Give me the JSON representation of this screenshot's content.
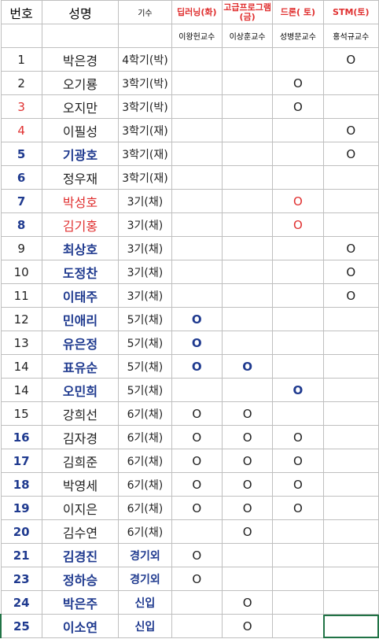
{
  "colors": {
    "blue": "#1f3a8f",
    "red": "#e03030",
    "black": "#222222",
    "selection": "#217346"
  },
  "headers": {
    "number": "번호",
    "name": "성명",
    "generation": "기수",
    "subjects": [
      "딥러닝(화)",
      "고급프로그램(금)",
      "드론( 토)",
      "STM(토)"
    ],
    "professors": [
      "이왕헌교수",
      "이상훈교수",
      "성병문교수",
      "홍석규교수"
    ]
  },
  "rows": [
    {
      "num": "1",
      "name": "박은경",
      "gen": "4학기(박)",
      "marks": [
        "",
        "",
        "",
        "O"
      ],
      "num_color": "black",
      "name_color": "black",
      "gen_color": "black",
      "mark_color": "black"
    },
    {
      "num": "2",
      "name": "오기룡",
      "gen": "3학기(박)",
      "marks": [
        "",
        "",
        "O",
        ""
      ],
      "num_color": "black",
      "name_color": "black",
      "gen_color": "black",
      "mark_color": "black"
    },
    {
      "num": "3",
      "name": "오지만",
      "gen": "3학기(박)",
      "marks": [
        "",
        "",
        "O",
        ""
      ],
      "num_color": "red",
      "name_color": "black",
      "gen_color": "black",
      "mark_color": "black"
    },
    {
      "num": "4",
      "name": "이필성",
      "gen": "3학기(재)",
      "marks": [
        "",
        "",
        "",
        "O"
      ],
      "num_color": "red",
      "name_color": "black",
      "gen_color": "black",
      "mark_color": "black"
    },
    {
      "num": "5",
      "name": "기광호",
      "gen": "3학기(재)",
      "marks": [
        "",
        "",
        "",
        "O"
      ],
      "num_color": "blue",
      "name_color": "blue",
      "gen_color": "black",
      "mark_color": "black"
    },
    {
      "num": "6",
      "name": "정우재",
      "gen": "3학기(재)",
      "marks": [
        "",
        "",
        "",
        ""
      ],
      "num_color": "blue",
      "name_color": "black",
      "gen_color": "black",
      "mark_color": "black"
    },
    {
      "num": "7",
      "name": "박성호",
      "gen": "3기(채)",
      "marks": [
        "",
        "",
        "O",
        ""
      ],
      "num_color": "blue",
      "name_color": "red",
      "gen_color": "black",
      "mark_color": "red"
    },
    {
      "num": "8",
      "name": "김기홍",
      "gen": "3기(채)",
      "marks": [
        "",
        "",
        "O",
        ""
      ],
      "num_color": "blue",
      "name_color": "red",
      "gen_color": "black",
      "mark_color": "red"
    },
    {
      "num": "9",
      "name": "최상호",
      "gen": "3기(채)",
      "marks": [
        "",
        "",
        "",
        "O"
      ],
      "num_color": "black",
      "name_color": "blue",
      "gen_color": "black",
      "mark_color": "black"
    },
    {
      "num": "10",
      "name": "도정찬",
      "gen": "3기(채)",
      "marks": [
        "",
        "",
        "",
        "O"
      ],
      "num_color": "black",
      "name_color": "blue",
      "gen_color": "black",
      "mark_color": "black"
    },
    {
      "num": "11",
      "name": "이태주",
      "gen": "3기(채)",
      "marks": [
        "",
        "",
        "",
        "O"
      ],
      "num_color": "black",
      "name_color": "blue",
      "gen_color": "black",
      "mark_color": "black"
    },
    {
      "num": "12",
      "name": "민애리",
      "gen": "5기(채)",
      "marks": [
        "O",
        "",
        "",
        ""
      ],
      "num_color": "black",
      "name_color": "blue",
      "gen_color": "black",
      "mark_color": "blue"
    },
    {
      "num": "13",
      "name": "유은정",
      "gen": "5기(채)",
      "marks": [
        "O",
        "",
        "",
        ""
      ],
      "num_color": "black",
      "name_color": "blue",
      "gen_color": "black",
      "mark_color": "blue"
    },
    {
      "num": "14",
      "name": "표유순",
      "gen": "5기(채)",
      "marks": [
        "O",
        "O",
        "",
        ""
      ],
      "num_color": "black",
      "name_color": "blue",
      "gen_color": "black",
      "mark_color": "blue"
    },
    {
      "num": "14",
      "name": "오민희",
      "gen": "5기(채)",
      "marks": [
        "",
        "",
        "O",
        ""
      ],
      "num_color": "black",
      "name_color": "blue",
      "gen_color": "black",
      "mark_color": "blue"
    },
    {
      "num": "15",
      "name": "강희선",
      "gen": "6기(채)",
      "marks": [
        "O",
        "O",
        "",
        ""
      ],
      "num_color": "black",
      "name_color": "black",
      "gen_color": "black",
      "mark_color": "black"
    },
    {
      "num": "16",
      "name": "김자경",
      "gen": "6기(채)",
      "marks": [
        "O",
        "O",
        "O",
        ""
      ],
      "num_color": "blue",
      "name_color": "black",
      "gen_color": "black",
      "mark_color": "black"
    },
    {
      "num": "17",
      "name": "김희준",
      "gen": "6기(채)",
      "marks": [
        "O",
        "O",
        "O",
        ""
      ],
      "num_color": "blue",
      "name_color": "black",
      "gen_color": "black",
      "mark_color": "black"
    },
    {
      "num": "18",
      "name": "박영세",
      "gen": "6기(채)",
      "marks": [
        "O",
        "O",
        "O",
        ""
      ],
      "num_color": "blue",
      "name_color": "black",
      "gen_color": "black",
      "mark_color": "black"
    },
    {
      "num": "19",
      "name": "이지은",
      "gen": "6기(채)",
      "marks": [
        "O",
        "O",
        "O",
        ""
      ],
      "num_color": "blue",
      "name_color": "black",
      "gen_color": "black",
      "mark_color": "black"
    },
    {
      "num": "20",
      "name": "김수연",
      "gen": "6기(채)",
      "marks": [
        "",
        "O",
        "",
        ""
      ],
      "num_color": "blue",
      "name_color": "black",
      "gen_color": "black",
      "mark_color": "black"
    },
    {
      "num": "21",
      "name": "김경진",
      "gen": "경기외",
      "marks": [
        "O",
        "",
        "",
        ""
      ],
      "num_color": "blue",
      "name_color": "blue",
      "gen_color": "blue",
      "mark_color": "black"
    },
    {
      "num": "23",
      "name": "정하승",
      "gen": "경기외",
      "marks": [
        "O",
        "",
        "",
        ""
      ],
      "num_color": "blue",
      "name_color": "blue",
      "gen_color": "blue",
      "mark_color": "black"
    },
    {
      "num": "24",
      "name": "박은주",
      "gen": "신입",
      "marks": [
        "",
        "O",
        "",
        ""
      ],
      "num_color": "blue",
      "name_color": "blue",
      "gen_color": "blue",
      "mark_color": "black"
    },
    {
      "num": "25",
      "name": "이소연",
      "gen": "신입",
      "marks": [
        "",
        "O",
        "",
        ""
      ],
      "num_color": "blue",
      "name_color": "blue",
      "gen_color": "blue",
      "mark_color": "black"
    }
  ]
}
